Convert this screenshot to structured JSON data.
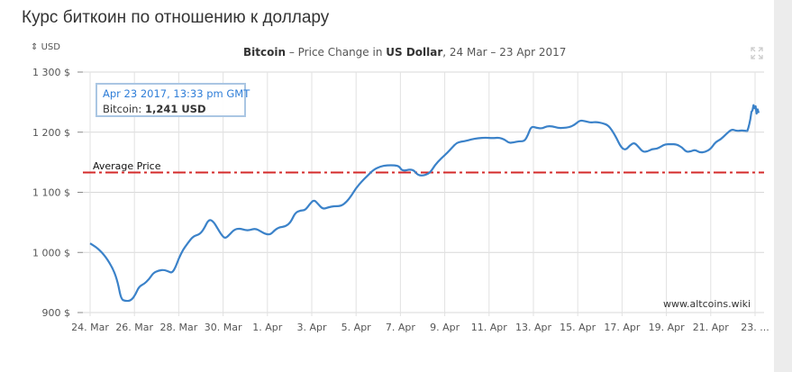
{
  "page": {
    "title": "Курс биткоин по отношению к доллару"
  },
  "chart_data": {
    "type": "line",
    "title_parts": {
      "coin": "Bitcoin",
      "sep": " – Price Change in ",
      "currency": "US Dollar",
      "range": ", 24 Mar – 23 Apr 2017"
    },
    "unit_label": "USD",
    "ylim": [
      900,
      1300
    ],
    "y_ticks": [
      900,
      1000,
      1100,
      1200,
      1300
    ],
    "y_tick_labels": [
      "900 $",
      "1 000 $",
      "1 100 $",
      "1 200 $",
      "1 300 $"
    ],
    "x_tick_labels": [
      "24. Mar",
      "26. Mar",
      "28. Mar",
      "30. Mar",
      "1. Apr",
      "3. Apr",
      "5. Apr",
      "7. Apr",
      "9. Apr",
      "11. Apr",
      "13. Apr",
      "15. Apr",
      "17. Apr",
      "19. Apr",
      "21. Apr",
      "23. ..."
    ],
    "x_range_days": [
      0,
      30.1
    ],
    "grid": true,
    "series": [
      {
        "name": "Bitcoin",
        "color": "#3b82c9",
        "points": [
          [
            0.0,
            1015
          ],
          [
            0.35,
            1007
          ],
          [
            0.7,
            993
          ],
          [
            1.05,
            972
          ],
          [
            1.25,
            950
          ],
          [
            1.4,
            922
          ],
          [
            1.6,
            919
          ],
          [
            1.85,
            920
          ],
          [
            2.05,
            930
          ],
          [
            2.2,
            943
          ],
          [
            2.45,
            948
          ],
          [
            2.65,
            955
          ],
          [
            2.85,
            966
          ],
          [
            3.1,
            970
          ],
          [
            3.35,
            971
          ],
          [
            3.55,
            968
          ],
          [
            3.7,
            966
          ],
          [
            3.85,
            975
          ],
          [
            4.0,
            990
          ],
          [
            4.2,
            1005
          ],
          [
            4.4,
            1015
          ],
          [
            4.65,
            1027
          ],
          [
            4.95,
            1030
          ],
          [
            5.15,
            1040
          ],
          [
            5.35,
            1055
          ],
          [
            5.55,
            1052
          ],
          [
            5.75,
            1040
          ],
          [
            5.95,
            1028
          ],
          [
            6.1,
            1023
          ],
          [
            6.3,
            1030
          ],
          [
            6.5,
            1038
          ],
          [
            6.75,
            1040
          ],
          [
            7.0,
            1037
          ],
          [
            7.2,
            1037
          ],
          [
            7.45,
            1040
          ],
          [
            7.7,
            1035
          ],
          [
            7.95,
            1030
          ],
          [
            8.15,
            1030
          ],
          [
            8.35,
            1038
          ],
          [
            8.55,
            1042
          ],
          [
            8.8,
            1043
          ],
          [
            9.05,
            1050
          ],
          [
            9.25,
            1066
          ],
          [
            9.5,
            1070
          ],
          [
            9.7,
            1070
          ],
          [
            9.9,
            1080
          ],
          [
            10.1,
            1088
          ],
          [
            10.3,
            1080
          ],
          [
            10.5,
            1072
          ],
          [
            10.75,
            1075
          ],
          [
            11.0,
            1077
          ],
          [
            11.3,
            1077
          ],
          [
            11.55,
            1083
          ],
          [
            11.8,
            1095
          ],
          [
            12.0,
            1107
          ],
          [
            12.25,
            1118
          ],
          [
            12.5,
            1127
          ],
          [
            12.8,
            1138
          ],
          [
            13.1,
            1143
          ],
          [
            13.4,
            1145
          ],
          [
            13.75,
            1145
          ],
          [
            13.95,
            1143
          ],
          [
            14.05,
            1137
          ],
          [
            14.2,
            1136
          ],
          [
            14.4,
            1138
          ],
          [
            14.6,
            1137
          ],
          [
            14.8,
            1128
          ],
          [
            15.1,
            1128
          ],
          [
            15.35,
            1133
          ],
          [
            15.55,
            1145
          ],
          [
            15.85,
            1157
          ],
          [
            16.1,
            1165
          ],
          [
            16.35,
            1175
          ],
          [
            16.55,
            1183
          ],
          [
            16.9,
            1185
          ],
          [
            17.2,
            1188
          ],
          [
            17.5,
            1190
          ],
          [
            17.85,
            1191
          ],
          [
            18.15,
            1190
          ],
          [
            18.45,
            1191
          ],
          [
            18.7,
            1188
          ],
          [
            18.9,
            1182
          ],
          [
            19.1,
            1183
          ],
          [
            19.35,
            1185
          ],
          [
            19.6,
            1185
          ],
          [
            19.75,
            1195
          ],
          [
            19.9,
            1210
          ],
          [
            20.15,
            1207
          ],
          [
            20.4,
            1206
          ],
          [
            20.6,
            1210
          ],
          [
            20.85,
            1210
          ],
          [
            21.1,
            1207
          ],
          [
            21.35,
            1207
          ],
          [
            21.6,
            1208
          ],
          [
            21.85,
            1212
          ],
          [
            22.1,
            1220
          ],
          [
            22.35,
            1218
          ],
          [
            22.6,
            1216
          ],
          [
            22.85,
            1217
          ],
          [
            23.1,
            1215
          ],
          [
            23.35,
            1212
          ],
          [
            23.55,
            1203
          ],
          [
            23.75,
            1190
          ],
          [
            23.95,
            1175
          ],
          [
            24.15,
            1170
          ],
          [
            24.35,
            1178
          ],
          [
            24.55,
            1183
          ],
          [
            24.75,
            1175
          ],
          [
            24.95,
            1167
          ],
          [
            25.15,
            1168
          ],
          [
            25.35,
            1172
          ],
          [
            25.55,
            1172
          ],
          [
            25.75,
            1176
          ],
          [
            25.95,
            1180
          ],
          [
            26.2,
            1180
          ],
          [
            26.45,
            1180
          ],
          [
            26.7,
            1175
          ],
          [
            26.9,
            1167
          ],
          [
            27.1,
            1168
          ],
          [
            27.3,
            1171
          ],
          [
            27.5,
            1166
          ],
          [
            27.75,
            1167
          ],
          [
            28.0,
            1172
          ],
          [
            28.2,
            1183
          ],
          [
            28.45,
            1188
          ],
          [
            28.7,
            1197
          ],
          [
            28.95,
            1205
          ],
          [
            29.15,
            1202
          ],
          [
            29.4,
            1203
          ],
          [
            29.65,
            1202
          ]
        ]
      }
    ],
    "average_line": {
      "label": "Average Price",
      "value": 1133,
      "color": "#d42a2a"
    },
    "tooltip": {
      "date": "Apr 23 2017, 13:33 pm GMT",
      "series_label": "Bitcoin: ",
      "value_text": "1,241 USD"
    },
    "watermark": "www.altcoins.wiki"
  }
}
